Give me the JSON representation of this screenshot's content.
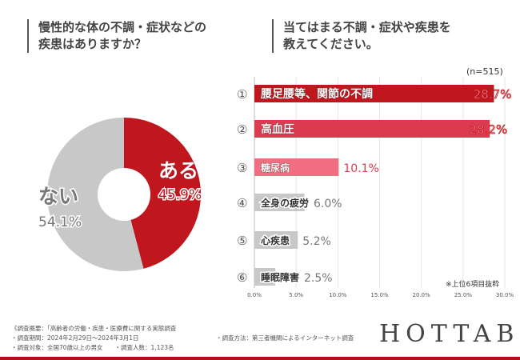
{
  "left_title": [
    "慢性的な体の不調・症状などの",
    "疾患はありますか？"
  ],
  "right_title": [
    "当てはまる不調・症状や疾患を",
    "教えてください。"
  ],
  "n_label": "(n=515)",
  "note": "※上位6項目抜粋",
  "footer": {
    "line1": "《調査概要：「高齢者の労働・疾患・医療費に関する実態調査",
    "line2": "・調査期間：2024年2月29日〜2024年3月1日",
    "line3": "・調査対象：全国70歳以上の男女　　・調査人数：1,123名",
    "method": "・調査方法：第三者機関によるインターネット調査"
  },
  "logo": "HOTTAB",
  "chart_data": [
    {
      "type": "pie",
      "title": "慢性的な体の不調・症状などの疾患はありますか？",
      "slices": [
        {
          "label": "ある",
          "value": 45.9,
          "pct": "45.9%",
          "color": "#c0171f"
        },
        {
          "label": "ない",
          "value": 54.1,
          "pct": "54.1%",
          "color": "#c8c8c8"
        }
      ]
    },
    {
      "type": "bar",
      "orientation": "horizontal",
      "title": "当てはまる不調・症状や疾患を教えてください。",
      "categories": [
        "腰足腰等、関節の不調",
        "高血圧",
        "糖尿病",
        "全身の疲労",
        "心疾患",
        "睡眠障害"
      ],
      "ranks": [
        "①",
        "②",
        "③",
        "④",
        "⑤",
        "⑥"
      ],
      "values": [
        28.7,
        28.2,
        10.1,
        6.0,
        5.2,
        2.5
      ],
      "labels": [
        "28.7%",
        "28.2%",
        "10.1%",
        "6.0%",
        "5.2%",
        "2.5%"
      ],
      "colors": [
        "#c0171f",
        "#dc3a4e",
        "#f06e80",
        "#c8c8c8",
        "#c8c8c8",
        "#c8c8c8"
      ],
      "xlim": [
        0,
        30
      ],
      "xticks": [
        "0.0%",
        "5.0%",
        "10.0%",
        "15.0%",
        "20.0%",
        "25.0%",
        "30.0%"
      ],
      "grid": true
    }
  ]
}
